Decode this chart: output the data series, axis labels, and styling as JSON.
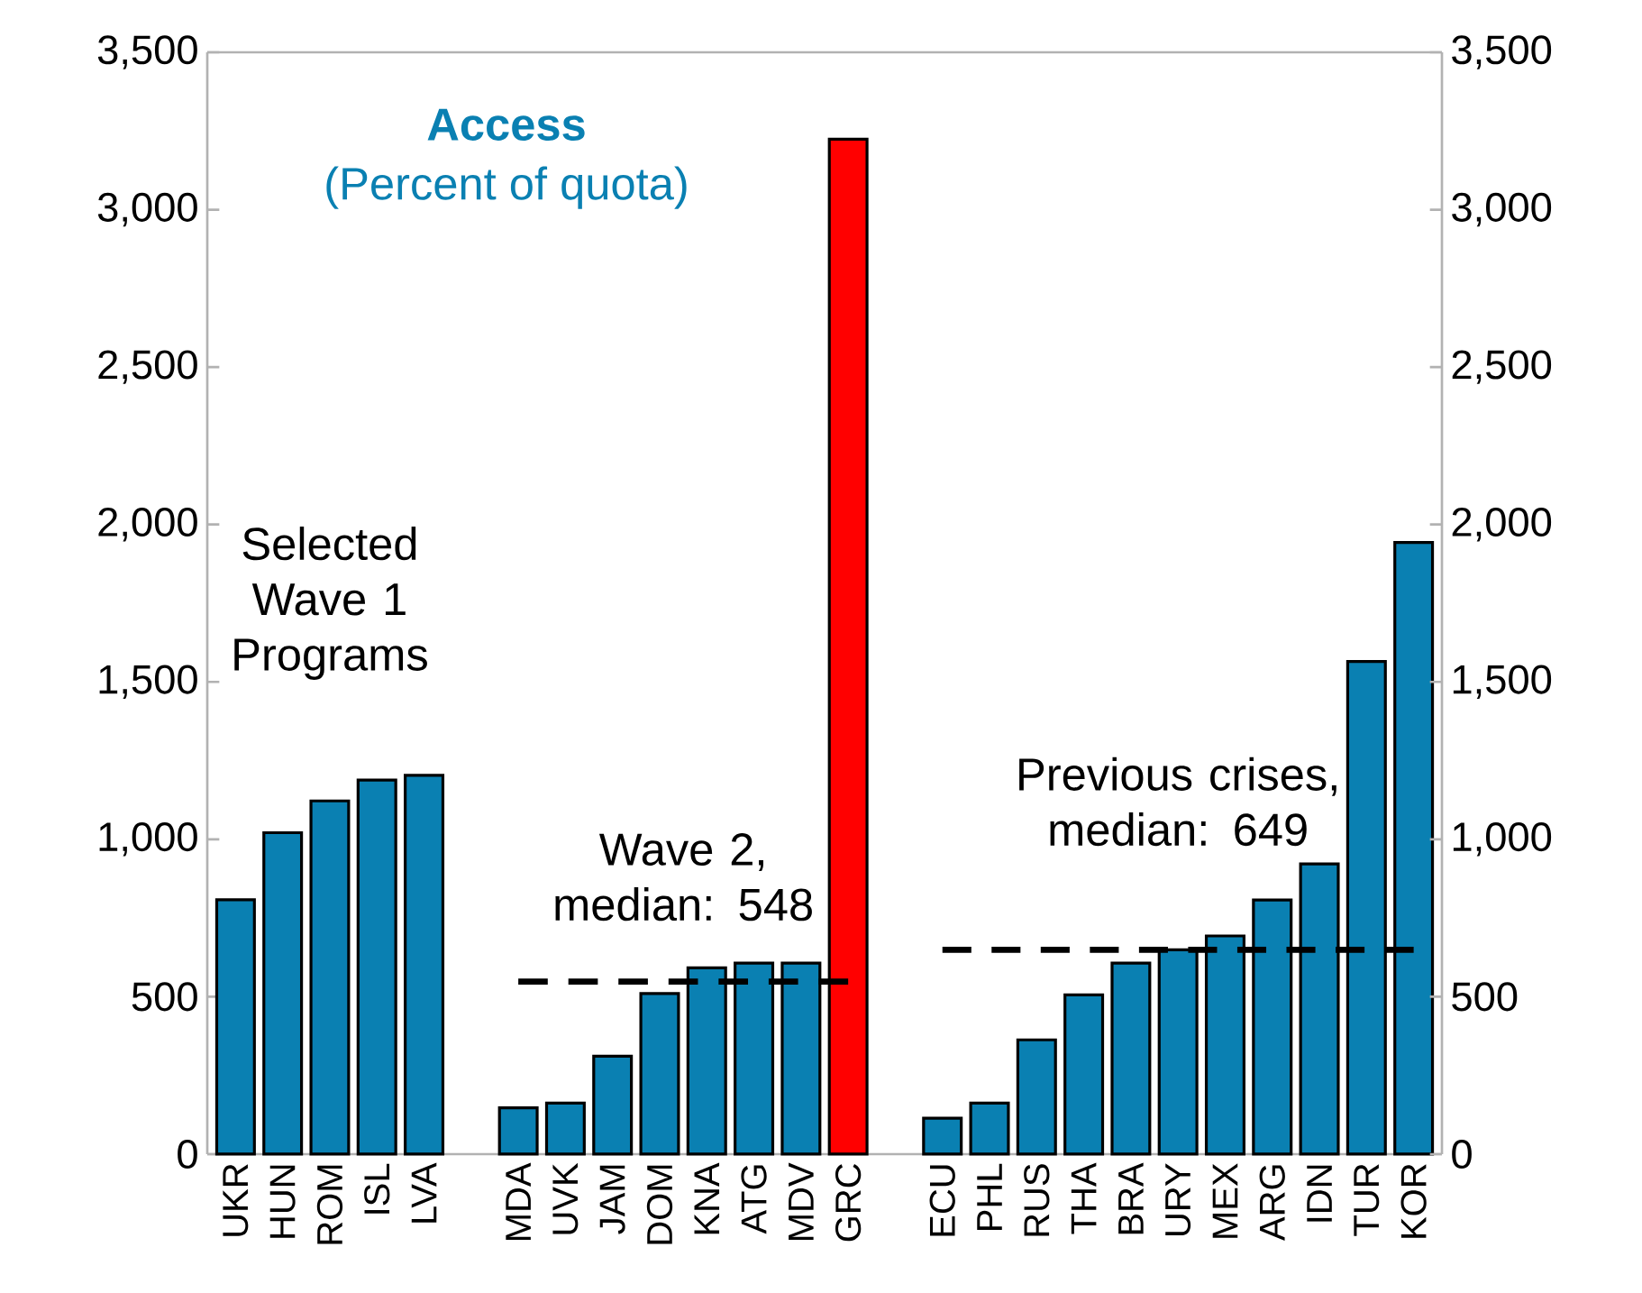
{
  "chart_data": {
    "type": "bar",
    "title": "Access",
    "subtitle": "(Percent of quota)",
    "categories": [
      "UKR",
      "HUN",
      "ROM",
      "ISL",
      "LVA",
      null,
      "MDA",
      "UVK",
      "JAM",
      "DOM",
      "KNA",
      "ATG",
      "MDV",
      "GRC",
      null,
      "ECU",
      "PHL",
      "RUS",
      "THA",
      "BRA",
      "URY",
      "MEX",
      "ARG",
      "IDN",
      "TUR",
      "KOR"
    ],
    "series": [
      {
        "values": [
          808,
          1021,
          1122,
          1188,
          1203,
          null,
          147,
          162,
          311,
          510,
          592,
          607,
          607,
          3224,
          null,
          114,
          162,
          363,
          506,
          607,
          649,
          693,
          807,
          922,
          1565,
          1943
        ],
        "colors": [
          "#0a80b2",
          "#0a80b2",
          "#0a80b2",
          "#0a80b2",
          "#0a80b2",
          "#0a80b2",
          "#0a80b2",
          "#0a80b2",
          "#0a80b2",
          "#0a80b2",
          "#0a80b2",
          "#0a80b2",
          "#0a80b2",
          "#ff0000",
          "#0a80b2",
          "#0a80b2",
          "#0a80b2",
          "#0a80b2",
          "#0a80b2",
          "#0a80b2",
          "#0a80b2",
          "#0a80b2",
          "#0a80b2",
          "#0a80b2",
          "#0a80b2",
          "#0a80b2"
        ]
      },
      {
        "type": "line",
        "color": "#000000",
        "line_style": "dashed",
        "values": [
          null,
          null,
          null,
          null,
          null,
          null,
          548,
          548,
          548,
          548,
          548,
          548,
          548,
          548,
          null,
          null,
          null,
          null,
          null,
          null,
          null,
          null,
          null,
          null,
          null,
          null
        ]
      },
      {
        "type": "line",
        "color": "#000000",
        "line_style": "dashed",
        "values": [
          null,
          null,
          null,
          null,
          null,
          null,
          null,
          null,
          null,
          null,
          null,
          null,
          null,
          null,
          null,
          649,
          649,
          649,
          649,
          649,
          649,
          649,
          649,
          649,
          649,
          649
        ]
      }
    ],
    "annotations": [
      "Selected Wave 1 Programs",
      "Wave 2, median: 548",
      "Previous crises, median: 649"
    ],
    "ylim": [
      0,
      3500
    ],
    "yticks": [
      0,
      500,
      {
        "value": 1000,
        "label": "1,000"
      },
      {
        "value": 1500,
        "label": "1,500"
      },
      {
        "value": 2000,
        "label": "2,000"
      },
      {
        "value": 2500,
        "label": "2,500"
      },
      {
        "value": 3000,
        "label": "3,000"
      },
      {
        "value": 3500,
        "label": "3,500"
      }
    ],
    "y2lim": [
      0,
      3500
    ],
    "y2ticks": [
      0,
      500,
      {
        "value": 1000,
        "label": "1,000"
      },
      {
        "value": 1500,
        "label": "1,500"
      },
      {
        "value": 2000,
        "label": "2,000"
      },
      {
        "value": 2500,
        "label": "2,500"
      },
      {
        "value": 3000,
        "label": "3,000"
      },
      {
        "value": 3500,
        "label": "3,500"
      }
    ],
    "grid": false
  }
}
